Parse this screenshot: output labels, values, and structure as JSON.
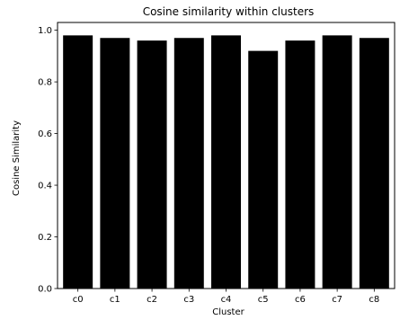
{
  "chart_data": {
    "type": "bar",
    "title": "Cosine similarity within clusters",
    "xlabel": "Cluster",
    "ylabel": "Cosine Similarity",
    "categories": [
      "c0",
      "c1",
      "c2",
      "c3",
      "c4",
      "c5",
      "c6",
      "c7",
      "c8"
    ],
    "values": [
      0.98,
      0.97,
      0.96,
      0.97,
      0.98,
      0.92,
      0.96,
      0.98,
      0.97
    ],
    "ylim": [
      0,
      1.03
    ],
    "yticks": [
      0.0,
      0.2,
      0.4,
      0.6,
      0.8,
      1.0
    ],
    "ytick_labels": [
      "0.0",
      "0.2",
      "0.4",
      "0.6",
      "0.8",
      "1.0"
    ],
    "bar_color": "#000000",
    "grid": false,
    "legend": false
  }
}
